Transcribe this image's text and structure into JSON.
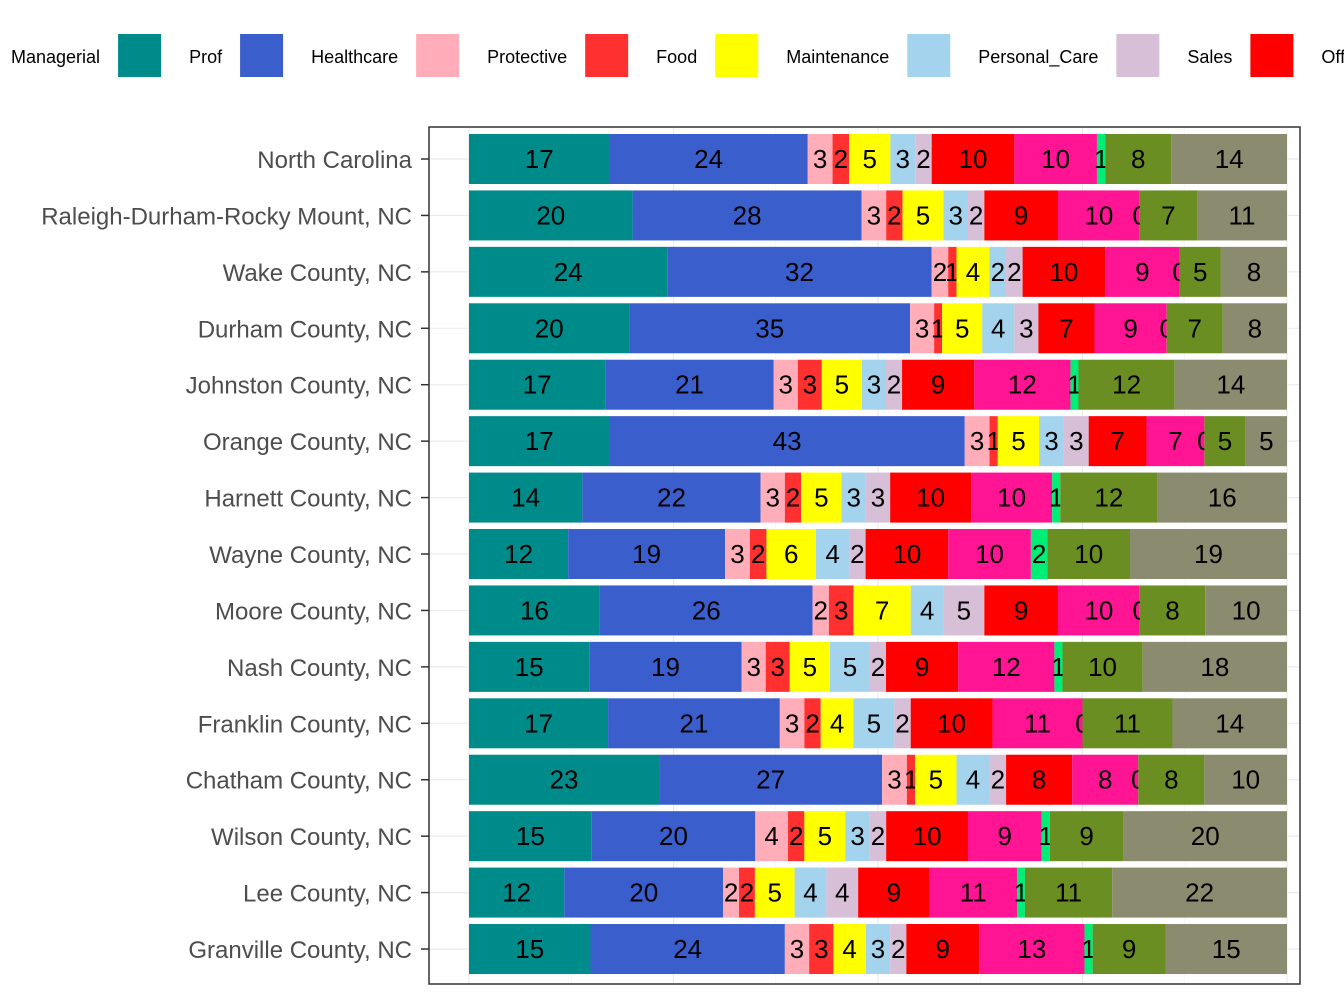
{
  "chart_data": {
    "type": "bar",
    "orientation": "horizontal",
    "stacked": true,
    "legend_position": "top",
    "grid": true,
    "categories": [
      "North Carolina",
      "Raleigh-Durham-Rocky Mount, NC",
      "Wake County, NC",
      "Durham County, NC",
      "Johnston County, NC",
      "Orange County, NC",
      "Harnett County, NC",
      "Wayne County, NC",
      "Moore County, NC",
      "Nash County, NC",
      "Franklin County, NC",
      "Chatham County, NC",
      "Wilson County, NC",
      "Lee County, NC",
      "Granville County, NC"
    ],
    "series": [
      {
        "name": "Managerial",
        "color": "#008b8b",
        "values": [
          17,
          20,
          24,
          20,
          17,
          17,
          14,
          12,
          16,
          15,
          17,
          23,
          15,
          12,
          15
        ]
      },
      {
        "name": "Prof",
        "color": "#3a5fcd",
        "values": [
          24,
          28,
          32,
          35,
          21,
          43,
          22,
          19,
          26,
          19,
          21,
          27,
          20,
          20,
          24
        ]
      },
      {
        "name": "Healthcare",
        "color": "#ffaeb9",
        "values": [
          3,
          3,
          2,
          3,
          3,
          3,
          3,
          3,
          2,
          3,
          3,
          3,
          4,
          2,
          3
        ]
      },
      {
        "name": "Protective",
        "color": "#ff3030",
        "values": [
          2,
          2,
          1,
          1,
          3,
          1,
          2,
          2,
          3,
          3,
          2,
          1,
          2,
          2,
          3
        ]
      },
      {
        "name": "Food",
        "color": "#ffff00",
        "values": [
          5,
          5,
          4,
          5,
          5,
          5,
          5,
          6,
          7,
          5,
          4,
          5,
          5,
          5,
          4
        ]
      },
      {
        "name": "Maintenance",
        "color": "#a4d3ee",
        "values": [
          3,
          3,
          2,
          4,
          3,
          3,
          3,
          4,
          4,
          5,
          5,
          4,
          3,
          4,
          3
        ]
      },
      {
        "name": "Personal_Care",
        "color": "#d8bfd8",
        "values": [
          2,
          2,
          2,
          3,
          2,
          3,
          3,
          2,
          5,
          2,
          2,
          2,
          2,
          4,
          2
        ]
      },
      {
        "name": "Sales",
        "color": "#ff0000",
        "values": [
          10,
          9,
          10,
          7,
          9,
          7,
          10,
          10,
          9,
          9,
          10,
          8,
          10,
          9,
          9
        ]
      },
      {
        "name": "Office",
        "color": "#ff1493",
        "values": [
          10,
          10,
          9,
          9,
          12,
          7,
          10,
          10,
          10,
          12,
          11,
          8,
          9,
          11,
          13
        ]
      },
      {
        "name": "",
        "color": "#00ee76",
        "values": [
          1,
          0,
          0,
          0,
          1,
          0,
          1,
          2,
          0,
          1,
          0,
          0,
          1,
          1,
          1
        ]
      },
      {
        "name": "",
        "color": "#6b8e23",
        "values": [
          8,
          7,
          5,
          7,
          12,
          5,
          12,
          10,
          8,
          10,
          11,
          8,
          9,
          11,
          9
        ]
      },
      {
        "name": "",
        "color": "#8b8b6f",
        "values": [
          14,
          11,
          8,
          8,
          14,
          5,
          16,
          19,
          10,
          18,
          14,
          10,
          20,
          22,
          15
        ]
      }
    ],
    "xlim": [
      0,
      100
    ],
    "title": "",
    "xlabel": "",
    "ylabel": ""
  }
}
